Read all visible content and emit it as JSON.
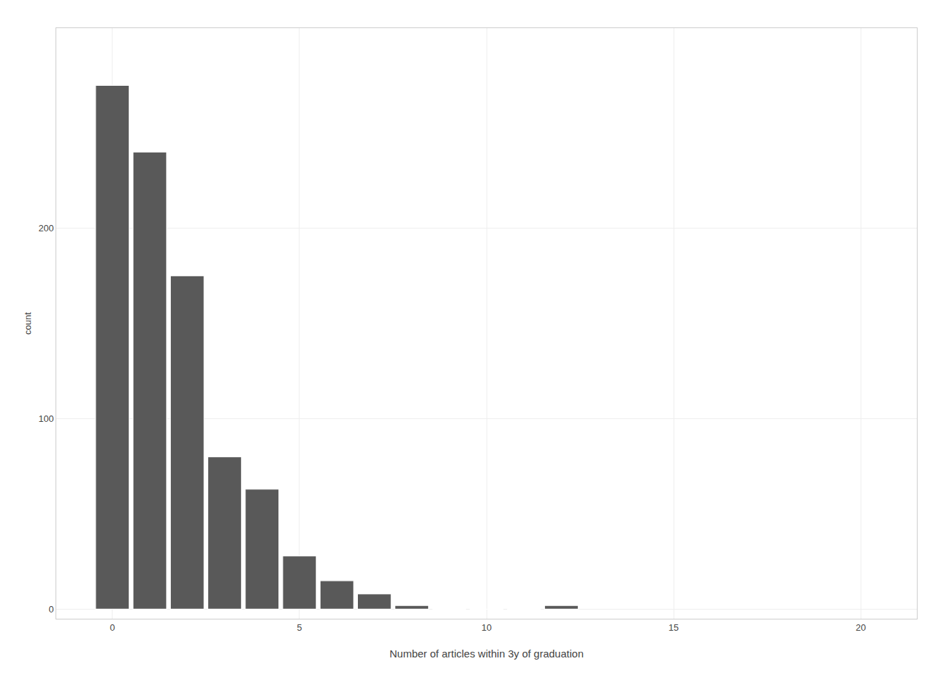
{
  "chart_data": {
    "type": "bar",
    "x": [
      0,
      1,
      2,
      3,
      4,
      5,
      6,
      7,
      8,
      9,
      10,
      11,
      12
    ],
    "values": [
      275,
      240,
      175,
      80,
      63,
      28,
      15,
      8,
      2,
      0,
      0,
      0,
      2
    ],
    "color": "#595959",
    "xlabel": "Number of articles within 3y of graduation",
    "ylabel": "count",
    "xlim": [
      -1.5,
      21.5
    ],
    "ylim": [
      -5,
      305
    ],
    "xticks": [
      0,
      5,
      10,
      15,
      20
    ],
    "yticks": [
      0,
      100,
      200
    ],
    "grid": true
  }
}
